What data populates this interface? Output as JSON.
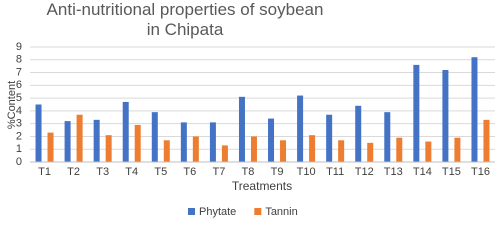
{
  "chart_data": {
    "type": "bar",
    "title": "Anti-nutritional properties of soybean in Chipata",
    "x_label": "Treatments",
    "y_label": "%Content",
    "categories": [
      "T1",
      "T2",
      "T3",
      "T4",
      "T5",
      "T6",
      "T7",
      "T8",
      "T9",
      "T10",
      "T11",
      "T12",
      "T13",
      "T14",
      "T15",
      "T16"
    ],
    "series": [
      {
        "name": "Phytate",
        "color": "#4472c4",
        "values": [
          4.5,
          3.2,
          3.3,
          4.7,
          3.9,
          3.1,
          3.1,
          5.1,
          3.4,
          5.2,
          3.7,
          4.4,
          3.9,
          7.6,
          7.2,
          8.2
        ]
      },
      {
        "name": "Tannin",
        "color": "#ed7d31",
        "values": [
          2.3,
          3.7,
          2.1,
          2.9,
          1.7,
          2.0,
          1.3,
          2.0,
          1.7,
          2.1,
          1.7,
          1.5,
          1.9,
          1.6,
          1.9,
          3.3
        ]
      }
    ],
    "ylim": [
      0,
      9
    ],
    "yticks": [
      0,
      1,
      2,
      3,
      4,
      5,
      6,
      7,
      8,
      9
    ],
    "grid": true,
    "legend": "bottom"
  }
}
